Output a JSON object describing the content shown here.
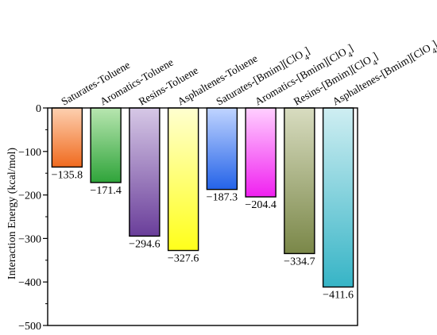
{
  "chart_data": {
    "type": "bar",
    "categories": [
      {
        "base": "Saturates-Toluene",
        "sub": ""
      },
      {
        "base": "Aromatics-Toluene",
        "sub": ""
      },
      {
        "base": "Resins-Toluene",
        "sub": ""
      },
      {
        "base": "Asphaltenes-Toluene",
        "sub": ""
      },
      {
        "base": "Saturates-[Bmim][ClO",
        "sub": "4",
        "tail": "]"
      },
      {
        "base": "Aromatics-[Bmim][ClO",
        "sub": "4",
        "tail": "]"
      },
      {
        "base": "Resins-[Bmim][ClO",
        "sub": "4",
        "tail": "]"
      },
      {
        "base": "Asphaltenes-[Bmim][ClO",
        "sub": "4",
        "tail": "]"
      }
    ],
    "values": [
      -135.8,
      -171.4,
      -294.6,
      -327.6,
      -187.3,
      -204.4,
      -334.7,
      -411.6
    ],
    "value_labels": [
      "−135.8",
      "−171.4",
      "−294.6",
      "−327.6",
      "−187.3",
      "−204.4",
      "−334.7",
      "−411.6"
    ],
    "ylabel": "Interaction Energy (kcal/mol)",
    "xlabel": "",
    "title": "",
    "ylim": [
      -500,
      0
    ],
    "yticks": [
      0,
      -100,
      -200,
      -300,
      -400,
      -500
    ],
    "ytick_labels": [
      "0",
      "−100",
      "−200",
      "−300",
      "−400",
      "−500"
    ],
    "grid": false,
    "legend": "none",
    "bar_gradients": [
      [
        "#fdd0b0",
        "#f06a1e"
      ],
      [
        "#b8e6b0",
        "#2fa43a"
      ],
      [
        "#d6c8e6",
        "#6a3e9a"
      ],
      [
        "#ffffd0",
        "#ffff1a"
      ],
      [
        "#c0d4ff",
        "#2463e8"
      ],
      [
        "#ffd0ff",
        "#f020f0"
      ],
      [
        "#d8dcc0",
        "#7a8748"
      ],
      [
        "#cfeef2",
        "#36b4c6"
      ]
    ]
  }
}
